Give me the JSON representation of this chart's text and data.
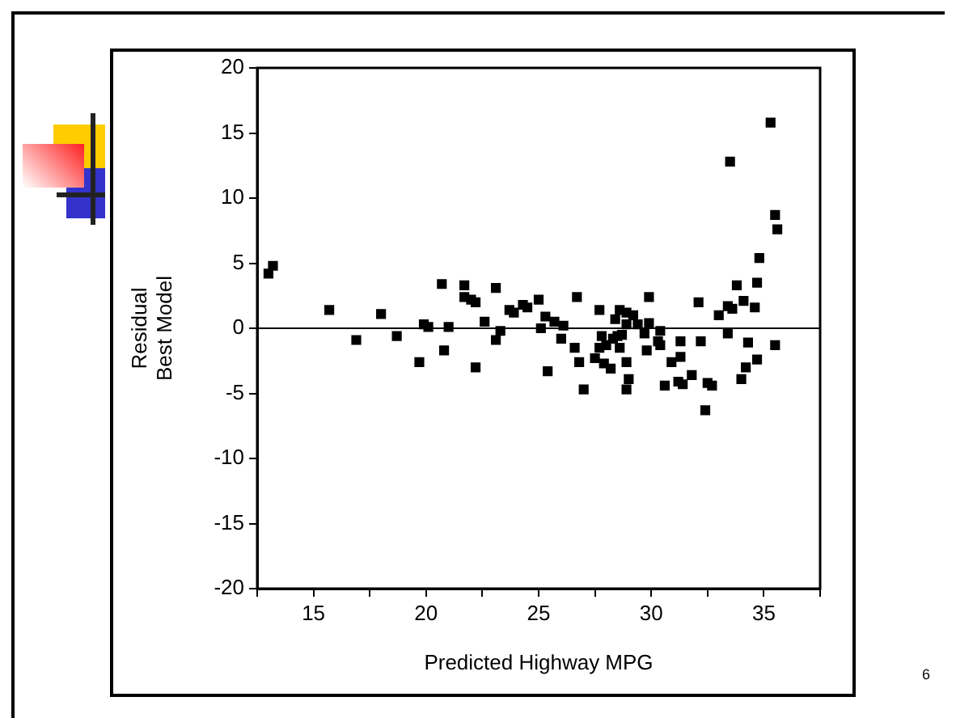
{
  "chart_data": {
    "type": "scatter",
    "xlabel": "Predicted Highway MPG",
    "ylabel": "Residual\nBest Model",
    "xlim": [
      12.5,
      37.5
    ],
    "xticks": [
      {
        "value": 12.5,
        "label": null
      },
      15,
      {
        "value": 17.5,
        "label": null
      },
      20,
      {
        "value": 22.5,
        "label": null
      },
      25,
      {
        "value": 27.5,
        "label": null
      },
      30,
      {
        "value": 32.5,
        "label": null
      },
      35,
      {
        "value": 37.5,
        "label": null
      }
    ],
    "ylim": [
      -20,
      20
    ],
    "yticks": [
      -20,
      -15,
      -10,
      -5,
      0,
      5,
      10,
      15,
      20
    ],
    "grid": false,
    "legend": false,
    "marker": "square",
    "ref_lines": [
      {
        "axis": "y",
        "value": 0,
        "color": "#000000"
      }
    ],
    "annotations": [
      "6"
    ],
    "series": [
      {
        "color": "#000000",
        "x": [
          13.0,
          13.2,
          15.7,
          16.9,
          18.0,
          18.7,
          19.9,
          20.1,
          20.7,
          20.8,
          21.0,
          21.7,
          21.7,
          22.0,
          22.2,
          22.6,
          23.1,
          23.1,
          23.3,
          23.7,
          23.9,
          24.3,
          24.5,
          25.0,
          25.1,
          25.3,
          19.7,
          22.2,
          25.4,
          35.3,
          33.5,
          35.5,
          35.6,
          34.8,
          33.8,
          34.7,
          32.1,
          33.0,
          33.4,
          33.6,
          34.1,
          34.6,
          29.9,
          26.7,
          27.7,
          28.6,
          28.9,
          28.4,
          29.2,
          29.4,
          28.9,
          29.9,
          30.4,
          25.7,
          26.1,
          26.0,
          26.6,
          26.8,
          27.0,
          27.8,
          28.3,
          28.0,
          28.5,
          28.7,
          28.6,
          27.7,
          27.5,
          27.9,
          28.2,
          28.9,
          29.0,
          28.9,
          29.7,
          29.8,
          30.3,
          30.4,
          31.3,
          31.3,
          30.9,
          30.6,
          31.2,
          31.4,
          31.8,
          32.5,
          32.7,
          32.4,
          32.2,
          33.4,
          34.3,
          35.5,
          34.7,
          34.2,
          34.0
        ],
        "values": [
          4.2,
          4.8,
          1.4,
          -0.9,
          1.1,
          -0.6,
          0.3,
          0.1,
          3.4,
          -1.7,
          0.1,
          3.3,
          2.4,
          2.2,
          2.0,
          0.5,
          3.1,
          -0.9,
          -0.2,
          1.4,
          1.2,
          1.8,
          1.6,
          2.2,
          0.0,
          0.9,
          -2.6,
          -3.0,
          -3.3,
          15.8,
          12.8,
          8.7,
          7.6,
          5.4,
          3.3,
          3.5,
          2.0,
          1.0,
          1.7,
          1.5,
          2.1,
          1.6,
          2.4,
          2.4,
          1.4,
          1.4,
          1.2,
          0.7,
          1.0,
          0.3,
          0.3,
          0.4,
          -0.2,
          0.5,
          0.2,
          -0.8,
          -1.5,
          -2.6,
          -4.7,
          -0.6,
          -0.8,
          -1.3,
          -0.6,
          -0.5,
          -1.5,
          -1.5,
          -2.3,
          -2.7,
          -3.1,
          -2.6,
          -3.9,
          -4.7,
          -0.4,
          -1.7,
          -1.0,
          -1.3,
          -1.0,
          -2.2,
          -2.6,
          -4.4,
          -4.1,
          -4.3,
          -3.6,
          -4.2,
          -4.4,
          -6.3,
          -1.0,
          -0.4,
          -1.1,
          -1.3,
          -2.4,
          -3.0,
          -3.9
        ]
      }
    ]
  }
}
